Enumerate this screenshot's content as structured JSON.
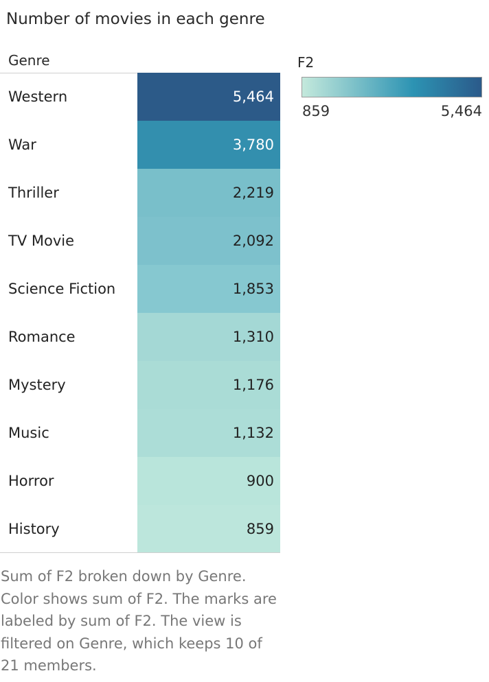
{
  "title": "Number of movies in each genre",
  "table": {
    "column_header": "Genre"
  },
  "legend": {
    "title": "F2",
    "min_label": "859",
    "max_label": "5,464",
    "color_low": "#c4e9dc",
    "color_mid": "#2c93b3",
    "color_high": "#2b5a8a"
  },
  "caption": "Sum of F2 broken down by Genre. Color shows sum of F2. The marks are labeled by sum of F2. The view is filtered on Genre, which keeps 10 of 21 members.",
  "chart_data": {
    "type": "heatmap",
    "title": "Number of movies in each genre",
    "categories": [
      "Western",
      "War",
      "Thriller",
      "TV Movie",
      "Science Fiction",
      "Romance",
      "Mystery",
      "Music",
      "Horror",
      "History"
    ],
    "values": [
      5464,
      3780,
      2219,
      2092,
      1853,
      1310,
      1176,
      1132,
      900,
      859
    ],
    "labels": [
      "5,464",
      "3,780",
      "2,219",
      "2,092",
      "1,853",
      "1,310",
      "1,176",
      "1,132",
      "900",
      "859"
    ],
    "row_colors": [
      "#2c5a88",
      "#338fae",
      "#79bfca",
      "#7dc1cc",
      "#86c8d0",
      "#a4d8d5",
      "#aadcd6",
      "#acddd7",
      "#b9e5db",
      "#bce6dc"
    ],
    "label_colors": [
      "#ffffff",
      "#ffffff",
      "#222222",
      "#222222",
      "#222222",
      "#222222",
      "#222222",
      "#222222",
      "#222222",
      "#222222"
    ],
    "color_range": [
      859,
      5464
    ],
    "legend_placement": "top-right"
  }
}
